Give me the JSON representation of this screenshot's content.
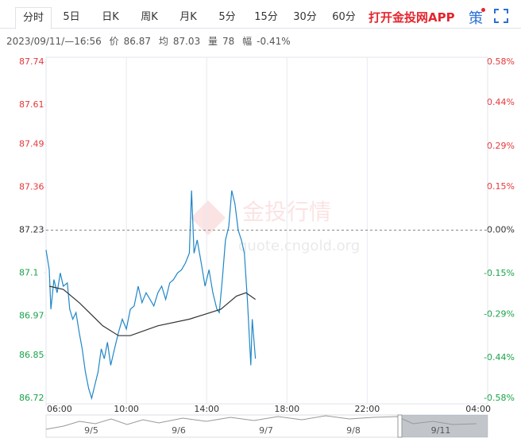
{
  "toolbar": {
    "tabs": [
      "分时",
      "5日",
      "日K",
      "周K",
      "月K",
      "5分",
      "15分",
      "30分",
      "60分"
    ],
    "active": 0,
    "app": "打开金投网APP",
    "strategy": "策"
  },
  "info": {
    "time": "2023/09/11/—16:56",
    "price_label": "价",
    "price": "86.87",
    "avg_label": "均",
    "avg": "87.03",
    "volume_label": "量",
    "volume": "78",
    "change_label": "幅",
    "change": "-0.41%"
  },
  "watermark": {
    "title": "金投行情",
    "url": "quote.cngold.org"
  },
  "chart_data": {
    "type": "line",
    "reference": 87.23,
    "ylim": [
      86.72,
      87.74
    ],
    "yticks": [
      86.72,
      86.85,
      86.97,
      87.1,
      87.23,
      87.36,
      87.49,
      87.61,
      87.74
    ],
    "y2lim": [
      -0.58,
      0.58
    ],
    "y2ticks": [
      {
        "value": -0.58,
        "label": "-0.58%"
      },
      {
        "value": -0.44,
        "label": "-0.44%"
      },
      {
        "value": -0.29,
        "label": "-0.29%"
      },
      {
        "value": -0.15,
        "label": "-0.15%"
      },
      {
        "value": 0,
        "label": "0.00%"
      },
      {
        "value": 0.15,
        "label": "0.15%"
      },
      {
        "value": 0.29,
        "label": "0.29%"
      },
      {
        "value": 0.44,
        "label": "0.44%"
      },
      {
        "value": 0.58,
        "label": "0.58%"
      }
    ],
    "xlim": [
      6,
      28
    ],
    "xticks": [
      {
        "value": 6,
        "label": "06:00"
      },
      {
        "value": 10,
        "label": "10:00"
      },
      {
        "value": 14,
        "label": "14:00"
      },
      {
        "value": 18,
        "label": "18:00"
      },
      {
        "value": 22,
        "label": "22:00"
      },
      {
        "value": 28,
        "label": "04:00"
      }
    ],
    "grid": "x",
    "up_color": "#e5383b",
    "down_color": "#1aa34a",
    "flat_color": "#333333",
    "series": [
      {
        "color": "#1f87c7",
        "x": [
          6.0,
          6.16,
          6.24,
          6.39,
          6.55,
          6.71,
          6.86,
          7.06,
          7.18,
          7.33,
          7.49,
          7.65,
          7.8,
          7.96,
          8.12,
          8.27,
          8.43,
          8.59,
          8.75,
          8.9,
          9.06,
          9.22,
          9.41,
          9.61,
          9.8,
          10.0,
          10.2,
          10.39,
          10.59,
          10.78,
          10.98,
          11.18,
          11.37,
          11.57,
          11.76,
          11.96,
          12.16,
          12.35,
          12.55,
          12.75,
          12.94,
          13.14,
          13.25,
          13.37,
          13.53,
          13.73,
          13.92,
          14.12,
          14.31,
          14.51,
          14.63,
          14.78,
          14.94,
          15.1,
          15.25,
          15.41,
          15.57,
          15.73,
          15.88,
          16.04,
          16.2,
          16.27,
          16.43
        ],
        "values": [
          87.17,
          87.11,
          86.99,
          87.08,
          87.04,
          87.1,
          87.06,
          87.07,
          86.99,
          86.96,
          86.98,
          86.92,
          86.87,
          86.8,
          86.75,
          86.72,
          86.76,
          86.8,
          86.87,
          86.84,
          86.89,
          86.82,
          86.87,
          86.92,
          86.96,
          86.93,
          86.99,
          87.0,
          87.06,
          87.01,
          87.04,
          87.02,
          87.0,
          87.04,
          87.06,
          87.02,
          87.07,
          87.08,
          87.1,
          87.11,
          87.13,
          87.16,
          87.35,
          87.16,
          87.2,
          87.13,
          87.06,
          87.11,
          87.04,
          86.99,
          86.98,
          87.08,
          87.2,
          87.24,
          87.35,
          87.31,
          87.23,
          87.2,
          87.16,
          87.01,
          86.82,
          86.96,
          86.84
        ]
      },
      {
        "color": "#333333",
        "x": [
          6.16,
          6.86,
          7.65,
          8.82,
          9.61,
          10.2,
          11.57,
          13.14,
          14.71,
          15.49,
          15.96,
          16.43
        ],
        "values": [
          87.06,
          87.05,
          87.01,
          86.94,
          86.91,
          86.91,
          86.94,
          86.96,
          86.99,
          87.03,
          87.04,
          87.02
        ]
      }
    ]
  },
  "navigator": {
    "dates": [
      "9/5",
      "9/6",
      "9/7",
      "9/8",
      "9/11"
    ]
  }
}
